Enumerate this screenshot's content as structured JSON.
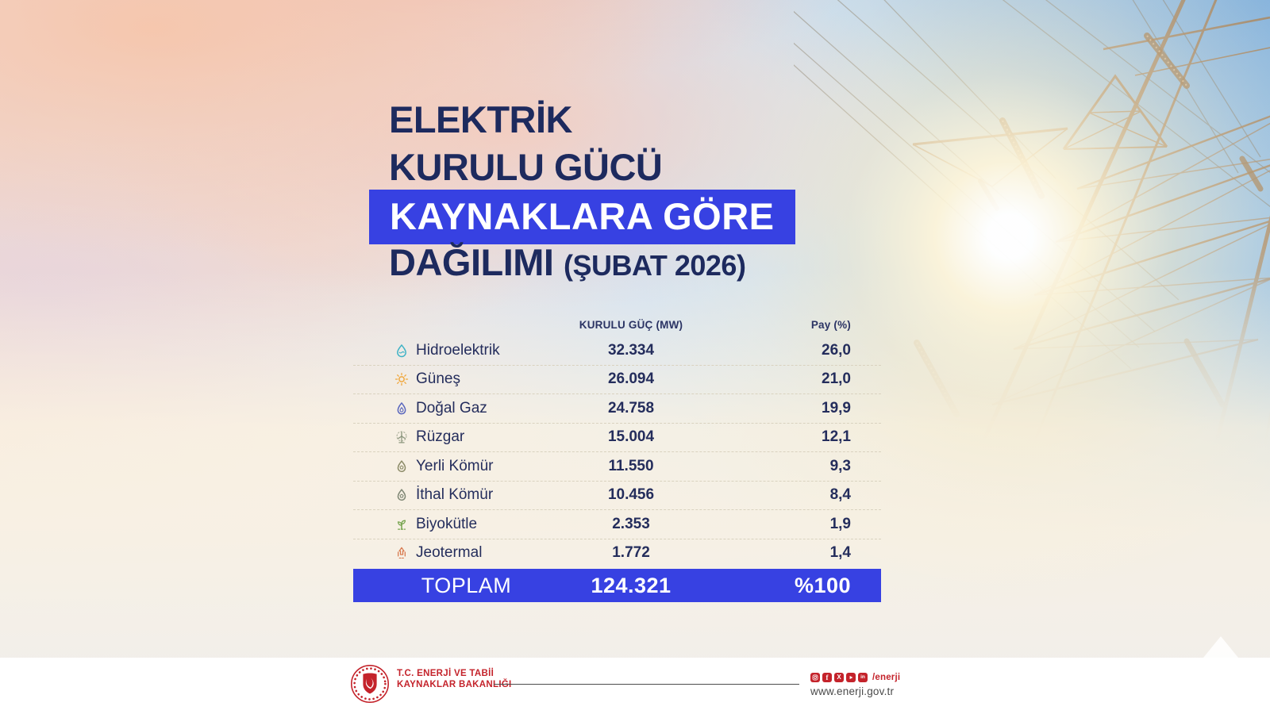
{
  "title": {
    "line1": "ELEKTRİK",
    "line2": "KURULU GÜCÜ",
    "highlight": "KAYNAKLARA GÖRE",
    "line4": "DAĞILIMI",
    "period": "(ŞUBAT 2026)"
  },
  "table": {
    "columns": {
      "capacity": "KURULU GÜÇ (MW)",
      "share": "Pay (%)"
    },
    "rows": [
      {
        "icon": "hydro-drop",
        "label": "Hidroelektrik",
        "capacity_mw": "32.334",
        "share_pct": "26,0",
        "icon_color": "#3fb3c6"
      },
      {
        "icon": "sun",
        "label": "Güneş",
        "capacity_mw": "26.094",
        "share_pct": "21,0",
        "icon_color": "#f0a73c"
      },
      {
        "icon": "gas-flame",
        "label": "Doğal Gaz",
        "capacity_mw": "24.758",
        "share_pct": "19,9",
        "icon_color": "#5a67bd"
      },
      {
        "icon": "wind-turbine",
        "label": "Rüzgar",
        "capacity_mw": "15.004",
        "share_pct": "12,1",
        "icon_color": "#8d977f"
      },
      {
        "icon": "coal",
        "label": "Yerli Kömür",
        "capacity_mw": "11.550",
        "share_pct": "9,3",
        "icon_color": "#8c8b68"
      },
      {
        "icon": "coal",
        "label": "İthal Kömür",
        "capacity_mw": "10.456",
        "share_pct": "8,4",
        "icon_color": "#7e8674"
      },
      {
        "icon": "biomass-plant",
        "label": "Biyokütle",
        "capacity_mw": "2.353",
        "share_pct": "1,9",
        "icon_color": "#74a24c"
      },
      {
        "icon": "geothermal",
        "label": "Jeotermal",
        "capacity_mw": "1.772",
        "share_pct": "1,4",
        "icon_color": "#d8794e"
      }
    ],
    "total": {
      "label": "TOPLAM",
      "capacity_mw": "124.321",
      "share_pct": "%100"
    }
  },
  "footer": {
    "ministry_line1": "T.C. ENERJİ VE TABİİ",
    "ministry_line2": "KAYNAKLAR BAKANLIĞI",
    "social_icons": [
      "instagram",
      "facebook",
      "x-twitter",
      "youtube",
      "linkedin"
    ],
    "social_handle": "/enerji",
    "website": "www.enerji.gov.tr"
  },
  "colors": {
    "accent_blue": "#3741e2",
    "navy": "#1d2a5e",
    "brand_red": "#c4232b"
  }
}
